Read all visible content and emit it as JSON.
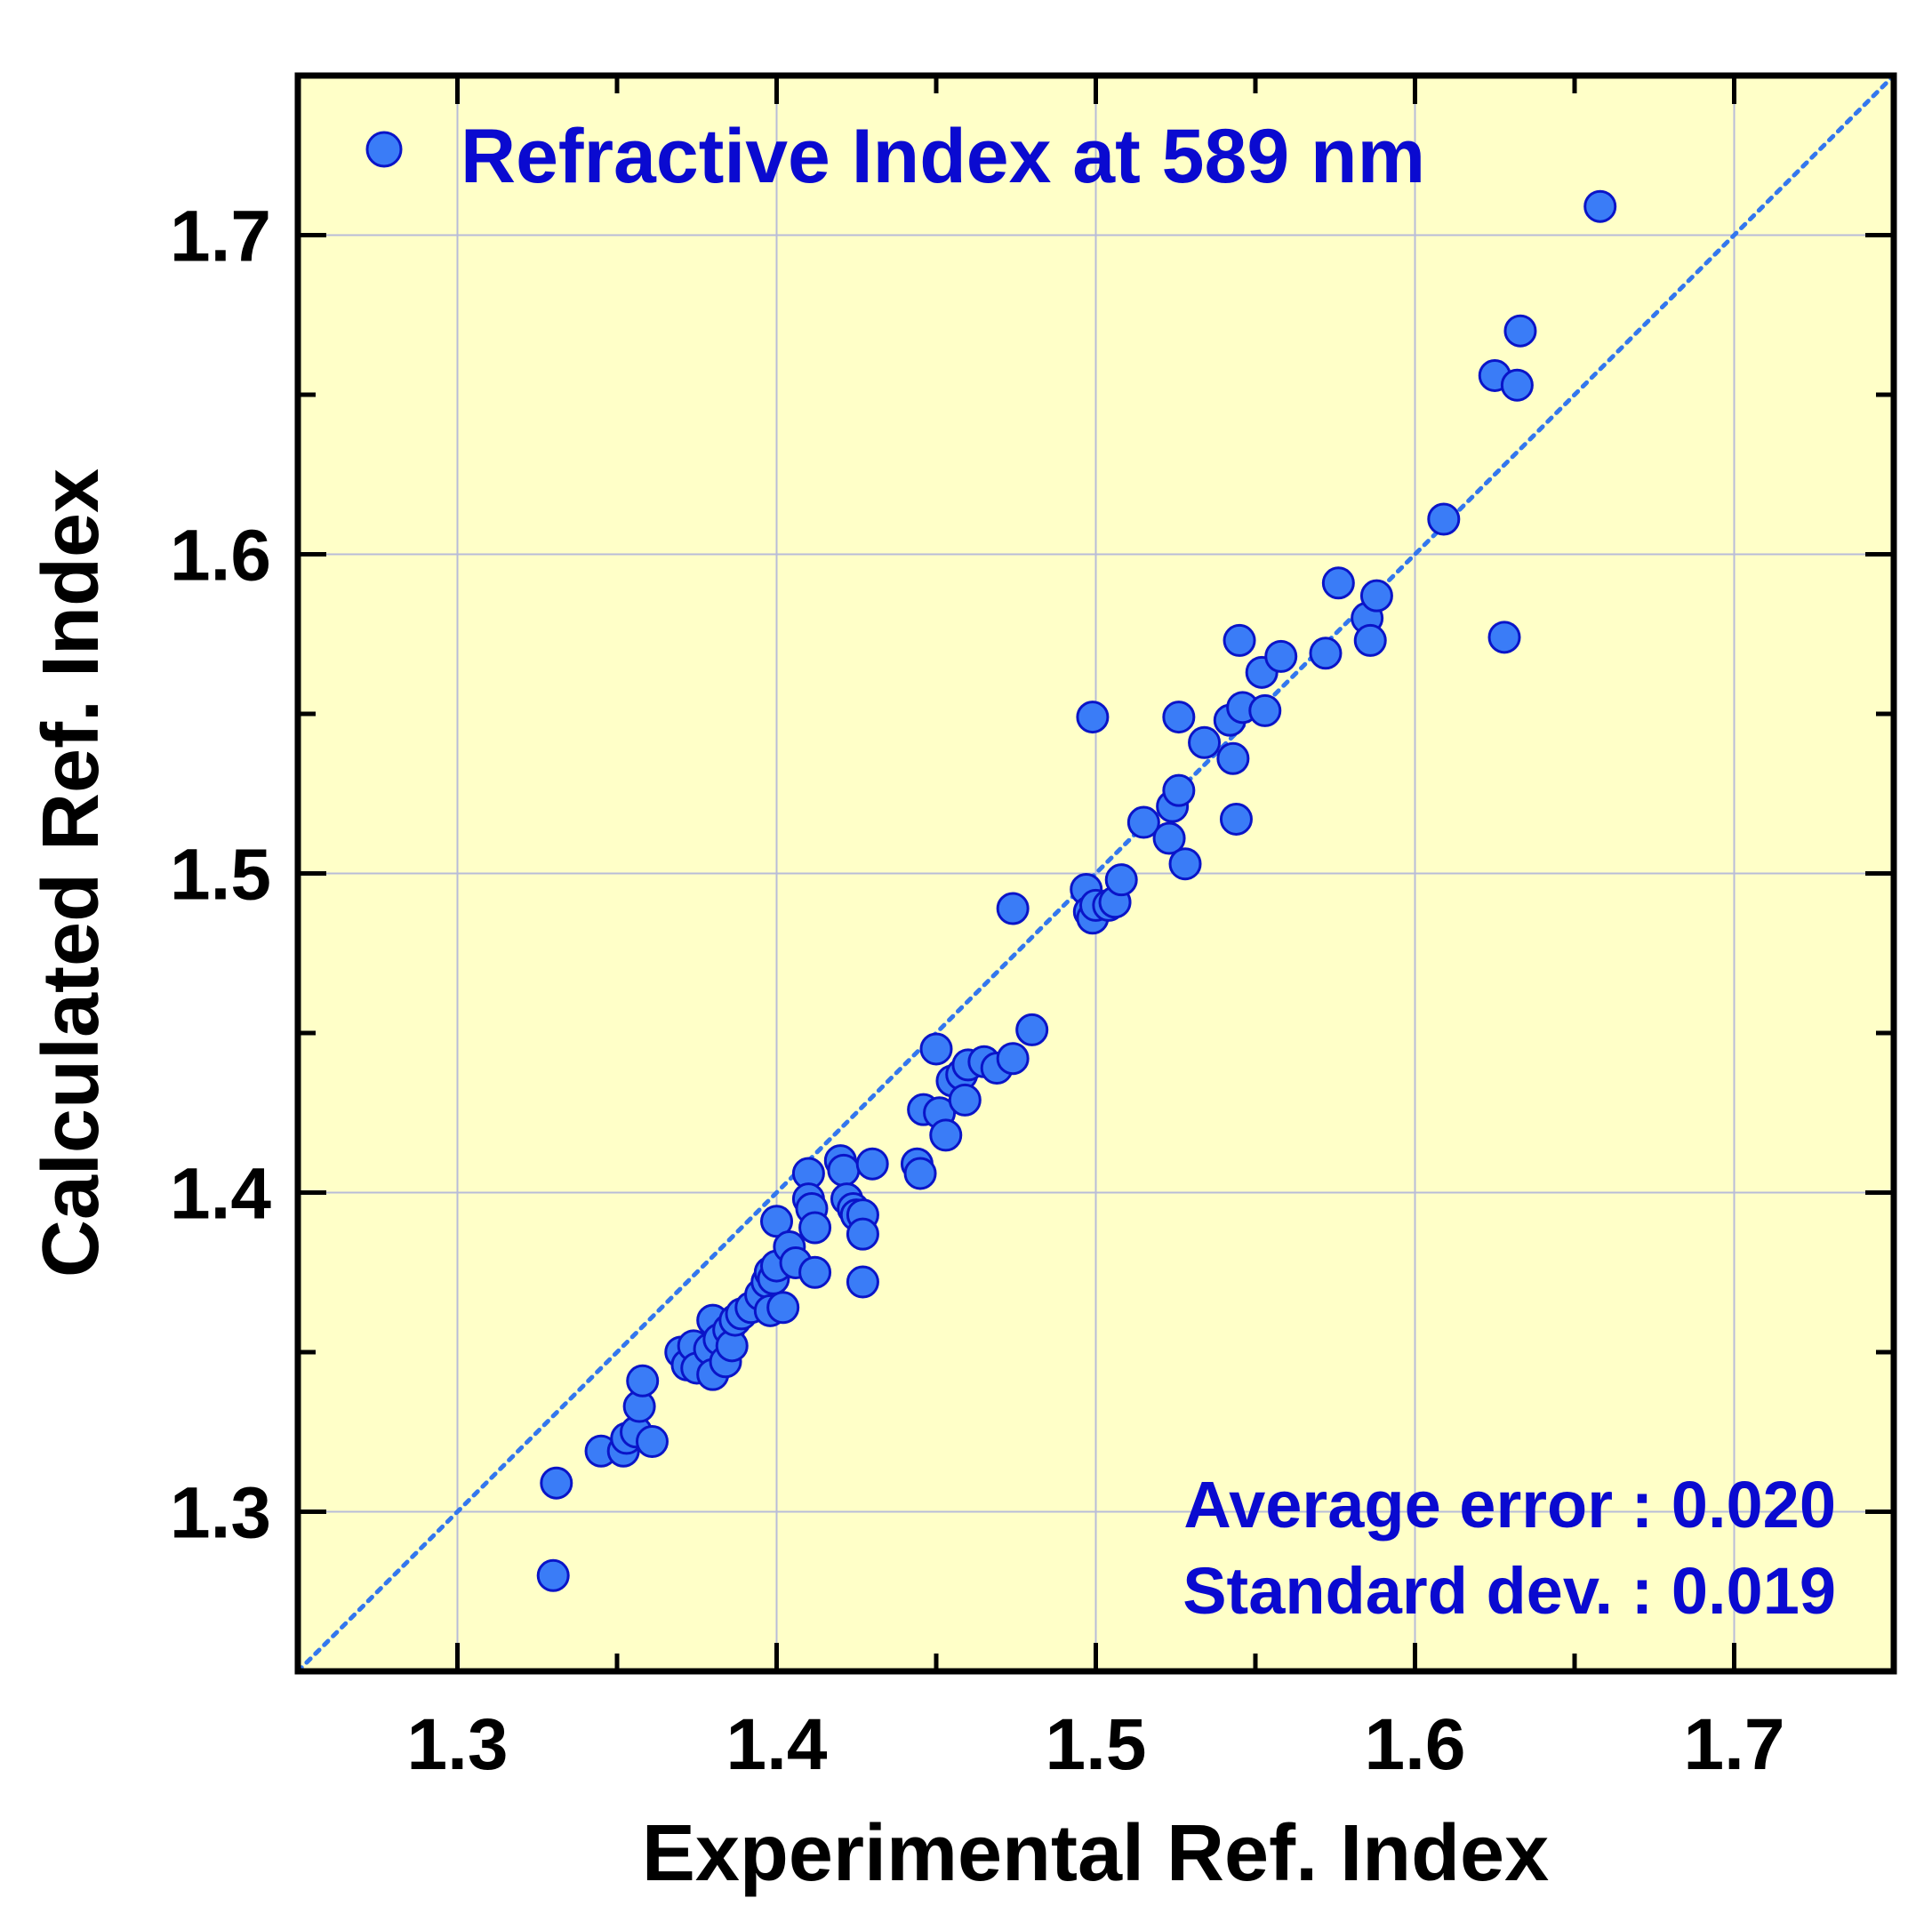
{
  "chart_data": {
    "type": "scatter",
    "xlabel": "Experimental Ref. Index",
    "ylabel": "Calculated Ref. Index",
    "xlim": [
      1.25,
      1.75
    ],
    "ylim": [
      1.25,
      1.75
    ],
    "xticks": [
      1.3,
      1.4,
      1.5,
      1.6,
      1.7
    ],
    "yticks": [
      1.3,
      1.4,
      1.5,
      1.6,
      1.7
    ],
    "xtick_labels": [
      "1.3",
      "1.4",
      "1.5",
      "1.6",
      "1.7"
    ],
    "ytick_labels": [
      "1.3",
      "1.4",
      "1.5",
      "1.6",
      "1.7"
    ],
    "grid": true,
    "legend_position": "top-left",
    "reference_line": "y = x",
    "colors": {
      "plot_background": "#ffffc8",
      "marker_fill": "#3a7cf7",
      "marker_edge": "#0a14c8",
      "text_accent": "#0a0ad0",
      "reference_line": "#3377ee",
      "grid": "#b8bcd8"
    },
    "series": [
      {
        "name": "Refractive Index at 589 nm",
        "points": [
          [
            1.331,
            1.309
          ],
          [
            1.33,
            1.28
          ],
          [
            1.345,
            1.319
          ],
          [
            1.352,
            1.319
          ],
          [
            1.353,
            1.323
          ],
          [
            1.356,
            1.325
          ],
          [
            1.357,
            1.333
          ],
          [
            1.358,
            1.341
          ],
          [
            1.361,
            1.322
          ],
          [
            1.37,
            1.35
          ],
          [
            1.372,
            1.346
          ],
          [
            1.374,
            1.352
          ],
          [
            1.375,
            1.345
          ],
          [
            1.379,
            1.351
          ],
          [
            1.38,
            1.36
          ],
          [
            1.38,
            1.343
          ],
          [
            1.382,
            1.354
          ],
          [
            1.384,
            1.347
          ],
          [
            1.385,
            1.357
          ],
          [
            1.386,
            1.352
          ],
          [
            1.387,
            1.36
          ],
          [
            1.389,
            1.362
          ],
          [
            1.392,
            1.364
          ],
          [
            1.395,
            1.368
          ],
          [
            1.397,
            1.372
          ],
          [
            1.398,
            1.375
          ],
          [
            1.399,
            1.373
          ],
          [
            1.398,
            1.363
          ],
          [
            1.4,
            1.377
          ],
          [
            1.4,
            1.391
          ],
          [
            1.402,
            1.364
          ],
          [
            1.404,
            1.383
          ],
          [
            1.406,
            1.378
          ],
          [
            1.41,
            1.406
          ],
          [
            1.41,
            1.398
          ],
          [
            1.411,
            1.395
          ],
          [
            1.412,
            1.389
          ],
          [
            1.412,
            1.375
          ],
          [
            1.42,
            1.41
          ],
          [
            1.421,
            1.407
          ],
          [
            1.422,
            1.398
          ],
          [
            1.424,
            1.395
          ],
          [
            1.425,
            1.393
          ],
          [
            1.427,
            1.393
          ],
          [
            1.427,
            1.387
          ],
          [
            1.427,
            1.372
          ],
          [
            1.43,
            1.409
          ],
          [
            1.444,
            1.409
          ],
          [
            1.445,
            1.406
          ],
          [
            1.446,
            1.426
          ],
          [
            1.45,
            1.445
          ],
          [
            1.451,
            1.425
          ],
          [
            1.453,
            1.418
          ],
          [
            1.455,
            1.435
          ],
          [
            1.458,
            1.437
          ],
          [
            1.459,
            1.429
          ],
          [
            1.46,
            1.44
          ],
          [
            1.465,
            1.441
          ],
          [
            1.469,
            1.439
          ],
          [
            1.474,
            1.442
          ],
          [
            1.474,
            1.489
          ],
          [
            1.48,
            1.451
          ],
          [
            1.497,
            1.495
          ],
          [
            1.498,
            1.488
          ],
          [
            1.499,
            1.486
          ],
          [
            1.499,
            1.549
          ],
          [
            1.5,
            1.49
          ],
          [
            1.504,
            1.49
          ],
          [
            1.506,
            1.491
          ],
          [
            1.508,
            1.498
          ],
          [
            1.515,
            1.516
          ],
          [
            1.523,
            1.511
          ],
          [
            1.524,
            1.521
          ],
          [
            1.526,
            1.526
          ],
          [
            1.526,
            1.549
          ],
          [
            1.528,
            1.503
          ],
          [
            1.534,
            1.541
          ],
          [
            1.542,
            1.548
          ],
          [
            1.543,
            1.536
          ],
          [
            1.544,
            1.517
          ],
          [
            1.545,
            1.573
          ],
          [
            1.546,
            1.552
          ],
          [
            1.552,
            1.563
          ],
          [
            1.553,
            1.551
          ],
          [
            1.558,
            1.568
          ],
          [
            1.572,
            1.569
          ],
          [
            1.576,
            1.591
          ],
          [
            1.585,
            1.58
          ],
          [
            1.586,
            1.573
          ],
          [
            1.588,
            1.587
          ],
          [
            1.609,
            1.611
          ],
          [
            1.625,
            1.656
          ],
          [
            1.628,
            1.574
          ],
          [
            1.632,
            1.653
          ],
          [
            1.633,
            1.67
          ],
          [
            1.658,
            1.709
          ]
        ]
      }
    ],
    "annotations": [
      {
        "label": "Average error : 0.020"
      },
      {
        "label": "Standard dev. : 0.019"
      }
    ]
  }
}
